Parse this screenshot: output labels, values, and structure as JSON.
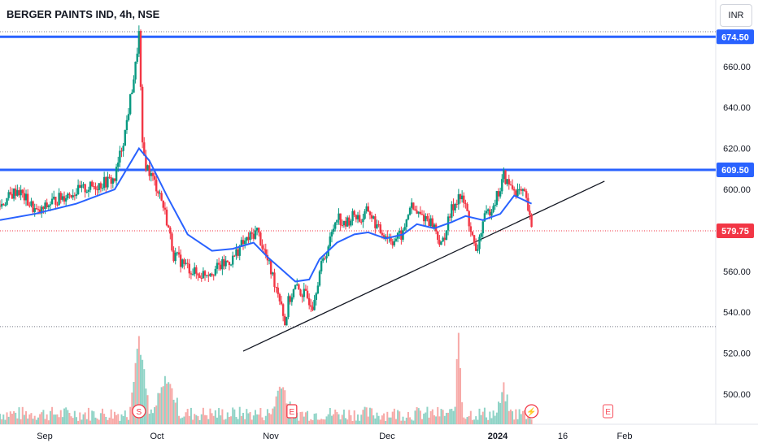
{
  "header": {
    "title": "BERGER PAINTS IND, 4h, NSE",
    "currency": "INR"
  },
  "chart_data": {
    "type": "candlestick",
    "symbol": "BERGER PAINTS IND",
    "interval": "4h",
    "exchange": "NSE",
    "ylim": [
      490,
      680
    ],
    "y_ticks": [
      500,
      520,
      540,
      560,
      580,
      600,
      620,
      640,
      660
    ],
    "y_tick_labels": [
      "500.00",
      "520.00",
      "540.00",
      "560.00",
      "580.00",
      "600.00",
      "620.00",
      "640.00",
      "660.00"
    ],
    "x_labels": [
      "Sep",
      "Oct",
      "Nov",
      "Dec",
      "2024",
      "16",
      "Feb"
    ],
    "price_labels": [
      {
        "text": "674.50",
        "value": 674.5,
        "color": "#2962ff"
      },
      {
        "text": "609.50",
        "value": 609.5,
        "color": "#2962ff"
      },
      {
        "text": "579.75",
        "value": 579.75,
        "color": "#f23645"
      }
    ],
    "horizontal_lines": [
      {
        "value": 674.5,
        "style": "solid",
        "color": "#2962ff"
      },
      {
        "value": 609.5,
        "style": "solid",
        "color": "#2962ff"
      },
      {
        "value": 579.75,
        "style": "dotted",
        "color": "#f23645"
      },
      {
        "value": 677,
        "style": "dotted",
        "color": "#787b86"
      },
      {
        "value": 533,
        "style": "dotted",
        "color": "#787b86"
      }
    ],
    "trendline": {
      "start": {
        "date": "2023-10-19",
        "price": 521
      },
      "end": {
        "date": "2024-01-31",
        "price": 604
      },
      "color": "#131722"
    },
    "close_path": [
      [
        "2023-08-10",
        592
      ],
      [
        "2023-08-15",
        600
      ],
      [
        "2023-08-21",
        588
      ],
      [
        "2023-08-25",
        594
      ],
      [
        "2023-08-30",
        598
      ],
      [
        "2023-09-05",
        601
      ],
      [
        "2023-09-12",
        605
      ],
      [
        "2023-09-15",
        628
      ],
      [
        "2023-09-18",
        660
      ],
      [
        "2023-09-19",
        676
      ],
      [
        "2023-09-20",
        620
      ],
      [
        "2023-09-21",
        612
      ],
      [
        "2023-09-25",
        598
      ],
      [
        "2023-09-27",
        585
      ],
      [
        "2023-09-29",
        568
      ],
      [
        "2023-10-03",
        562
      ],
      [
        "2023-10-06",
        558
      ],
      [
        "2023-10-11",
        561
      ],
      [
        "2023-10-16",
        566
      ],
      [
        "2023-10-18",
        572
      ],
      [
        "2023-10-20",
        575
      ],
      [
        "2023-10-23",
        580
      ],
      [
        "2023-10-25",
        570
      ],
      [
        "2023-10-27",
        560
      ],
      [
        "2023-10-30",
        545
      ],
      [
        "2023-10-31",
        534
      ],
      [
        "2023-11-01",
        545
      ],
      [
        "2023-11-03",
        552
      ],
      [
        "2023-11-06",
        548
      ],
      [
        "2023-11-08",
        544
      ],
      [
        "2023-11-10",
        560
      ],
      [
        "2023-11-13",
        575
      ],
      [
        "2023-11-15",
        588
      ],
      [
        "2023-11-17",
        582
      ],
      [
        "2023-11-20",
        588
      ],
      [
        "2023-11-22",
        585
      ],
      [
        "2023-11-24",
        590
      ],
      [
        "2023-11-27",
        580
      ],
      [
        "2023-11-29",
        578
      ],
      [
        "2023-12-01",
        575
      ],
      [
        "2023-12-04",
        578
      ],
      [
        "2023-12-06",
        592
      ],
      [
        "2023-12-08",
        588
      ],
      [
        "2023-12-11",
        586
      ],
      [
        "2023-12-13",
        582
      ],
      [
        "2023-12-15",
        572
      ],
      [
        "2023-12-18",
        590
      ],
      [
        "2023-12-20",
        597
      ],
      [
        "2023-12-22",
        592
      ],
      [
        "2023-12-25",
        568
      ],
      [
        "2023-12-27",
        584
      ],
      [
        "2023-12-29",
        590
      ],
      [
        "2024-01-01",
        600
      ],
      [
        "2024-01-02",
        607
      ],
      [
        "2024-01-03",
        603
      ],
      [
        "2024-01-05",
        600
      ],
      [
        "2024-01-08",
        597
      ],
      [
        "2024-01-09",
        590
      ],
      [
        "2024-01-10",
        580
      ]
    ],
    "ma_path": [
      [
        "2023-08-10",
        585
      ],
      [
        "2023-08-20",
        588
      ],
      [
        "2023-09-01",
        593
      ],
      [
        "2023-09-12",
        600
      ],
      [
        "2023-09-19",
        620
      ],
      [
        "2023-09-22",
        614
      ],
      [
        "2023-09-27",
        597
      ],
      [
        "2023-10-03",
        578
      ],
      [
        "2023-10-10",
        570
      ],
      [
        "2023-10-16",
        571
      ],
      [
        "2023-10-22",
        574
      ],
      [
        "2023-10-26",
        567
      ],
      [
        "2023-10-30",
        561
      ],
      [
        "2023-11-03",
        555
      ],
      [
        "2023-11-07",
        556
      ],
      [
        "2023-11-10",
        566
      ],
      [
        "2023-11-15",
        574
      ],
      [
        "2023-11-20",
        578
      ],
      [
        "2023-11-24",
        579
      ],
      [
        "2023-11-29",
        576
      ],
      [
        "2023-12-04",
        578
      ],
      [
        "2023-12-08",
        583
      ],
      [
        "2023-12-13",
        581
      ],
      [
        "2023-12-18",
        584
      ],
      [
        "2023-12-22",
        587
      ],
      [
        "2023-12-27",
        585
      ],
      [
        "2024-01-01",
        588
      ],
      [
        "2024-01-05",
        597
      ],
      [
        "2024-01-10",
        593
      ]
    ],
    "events": [
      {
        "label": "S",
        "date": "2023-09-19",
        "color": "#f23645"
      },
      {
        "label": "E",
        "date": "2023-11-02",
        "color": "#f23645"
      },
      {
        "label": "⚡",
        "date": "2024-01-10",
        "color": "#f23645"
      },
      {
        "label": "E",
        "date": "2024-02-01",
        "color": "#f7525f"
      }
    ],
    "colors": {
      "up": "#089981",
      "down": "#f23645",
      "ma": "#2962ff"
    }
  }
}
